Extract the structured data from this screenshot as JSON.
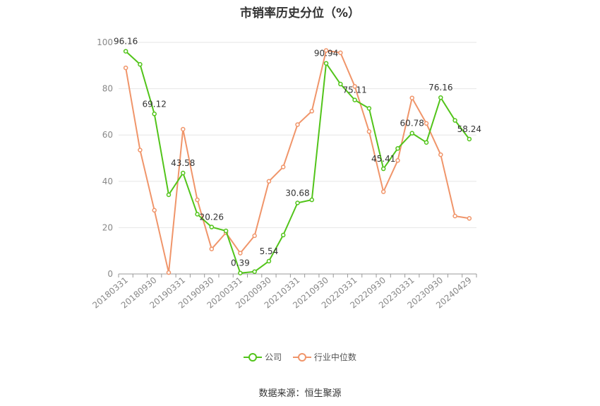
{
  "title": "市销率历史分位（%）",
  "source": "数据来源：恒生聚源",
  "chart_data": {
    "type": "line",
    "x_tick_labels": [
      "20180331",
      "20180930",
      "20190331",
      "20190930",
      "20200331",
      "20200930",
      "20210331",
      "20210930",
      "20220331",
      "20220930",
      "20230331",
      "20230930",
      "20240429"
    ],
    "ylim": [
      0,
      100
    ],
    "y_ticks": [
      0,
      20,
      40,
      60,
      80,
      100
    ],
    "grid": true,
    "legend_position": "bottom",
    "series": [
      {
        "name": "公司",
        "color": "#52c41a",
        "values": [
          96.16,
          90.5,
          69.12,
          34.2,
          43.58,
          25.8,
          20.26,
          18.6,
          0.39,
          1.0,
          5.54,
          16.8,
          30.68,
          32.0,
          90.94,
          82.0,
          75.11,
          71.5,
          45.41,
          54.2,
          60.78,
          56.8,
          76.16,
          66.3,
          58.24
        ],
        "labels": {
          "0": "96.16",
          "2": "69.12",
          "4": "43.58",
          "6": "20.26",
          "8": "0.39",
          "10": "5.54",
          "12": "30.68",
          "14": "90.94",
          "16": "75.11",
          "18": "45.41",
          "20": "60.78",
          "22": "76.16",
          "24": "58.24"
        }
      },
      {
        "name": "行业中位数",
        "color": "#f0956a",
        "values": [
          89.0,
          53.5,
          27.5,
          0.6,
          62.5,
          32.0,
          10.8,
          17.8,
          9.0,
          16.5,
          40.0,
          46.2,
          64.5,
          70.3,
          96.5,
          95.5,
          81.0,
          61.5,
          35.5,
          49.0,
          76.0,
          65.0,
          51.5,
          25.0,
          24.0
        ]
      }
    ]
  }
}
